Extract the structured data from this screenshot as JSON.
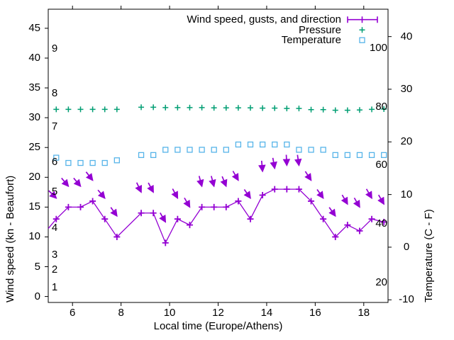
{
  "colors": {
    "wind": "#9400d3",
    "pressure": "#009e73",
    "temperature": "#56b4e9",
    "axis": "#000000",
    "background": "#ffffff"
  },
  "chart_data": {
    "type": "line",
    "title": "",
    "xlabel": "Local time (Europe/Athens)",
    "ylabel": "Wind speed (kn - Beaufort)",
    "y2label": "Temperature (C - F)",
    "legend_position": "top-right-inside",
    "grid": false,
    "legend": [
      {
        "label": "Wind speed, gusts, and direction",
        "symbol": "errorbar",
        "color": "#9400d3"
      },
      {
        "label": "Pressure",
        "symbol": "plus",
        "color": "#009e73"
      },
      {
        "label": "Temperature",
        "symbol": "open-square",
        "color": "#56b4e9"
      }
    ],
    "x_axis": {
      "range": [
        5,
        19
      ],
      "ticks": [
        6,
        8,
        10,
        12,
        14,
        16,
        18
      ]
    },
    "y_axis": {
      "range": [
        -1,
        48.2
      ],
      "ticks": [
        0,
        5,
        10,
        15,
        20,
        25,
        30,
        35,
        40,
        45
      ]
    },
    "y2_axis": {
      "range": [
        -10.5,
        45.2
      ],
      "ticks": [
        -10,
        0,
        10,
        20,
        30,
        40
      ]
    },
    "beaufort_scale_labels": [
      {
        "text": "1",
        "kn": 1.5
      },
      {
        "text": "2",
        "kn": 4.5
      },
      {
        "text": "3",
        "kn": 7
      },
      {
        "text": "4",
        "kn": 11.5
      },
      {
        "text": "5",
        "kn": 17.5
      },
      {
        "text": "6",
        "kn": 22.5
      },
      {
        "text": "7",
        "kn": 28.5
      },
      {
        "text": "8",
        "kn": 34
      },
      {
        "text": "9",
        "kn": 41.5
      }
    ],
    "fahrenheit_scale_labels": [
      {
        "text": "100",
        "f": 100
      },
      {
        "text": "80",
        "f": 80
      },
      {
        "text": "60",
        "f": 60
      },
      {
        "text": "40",
        "f": 40
      },
      {
        "text": "20",
        "f": 20
      }
    ],
    "wind_line_edge_start": {
      "time": 5.0,
      "kn": 11.4
    },
    "series": {
      "time": [
        5.33,
        5.83,
        6.33,
        6.83,
        7.33,
        7.83,
        8.83,
        9.33,
        9.83,
        10.33,
        10.83,
        11.33,
        11.83,
        12.33,
        12.83,
        13.33,
        13.83,
        14.33,
        14.83,
        15.33,
        15.83,
        16.33,
        16.83,
        17.33,
        17.83,
        18.33,
        18.83
      ],
      "wind_speed_kn": [
        13,
        15,
        15,
        16,
        13,
        10,
        14,
        14,
        9,
        13,
        12,
        15,
        15,
        15,
        16,
        13,
        17,
        18,
        18,
        18,
        16,
        13,
        10,
        12,
        11,
        13,
        12.5
      ],
      "gust_kn": [
        16.5,
        18.5,
        18.5,
        19.5,
        16.5,
        13.5,
        17.5,
        17.5,
        12.5,
        16.5,
        15,
        18.5,
        18.5,
        18.5,
        19.5,
        16.5,
        21,
        21.5,
        22,
        22,
        19.5,
        16.5,
        13.5,
        15.5,
        15,
        16.5,
        15.5
      ],
      "gust_dir_deg_from_down": [
        45,
        40,
        40,
        38,
        40,
        35,
        25,
        28,
        30,
        28,
        30,
        15,
        15,
        22,
        30,
        35,
        5,
        10,
        3,
        8,
        33,
        35,
        35,
        30,
        30,
        30,
        30
      ],
      "pressure_plotted_kn": [
        31.4,
        31.4,
        31.4,
        31.4,
        31.4,
        31.4,
        31.75,
        31.75,
        31.7,
        31.7,
        31.7,
        31.7,
        31.65,
        31.65,
        31.65,
        31.65,
        31.6,
        31.6,
        31.55,
        31.55,
        31.35,
        31.35,
        31.25,
        31.25,
        31.3,
        31.4,
        31.45
      ],
      "temperature_c": [
        17,
        16,
        16,
        16,
        16,
        16.5,
        17.5,
        17.5,
        18.5,
        18.5,
        18.5,
        18.5,
        18.5,
        18.5,
        19.5,
        19.5,
        19.5,
        19.5,
        19.5,
        18.5,
        18.5,
        18.5,
        17.5,
        17.5,
        17.5,
        17.5,
        17.5
      ]
    }
  }
}
